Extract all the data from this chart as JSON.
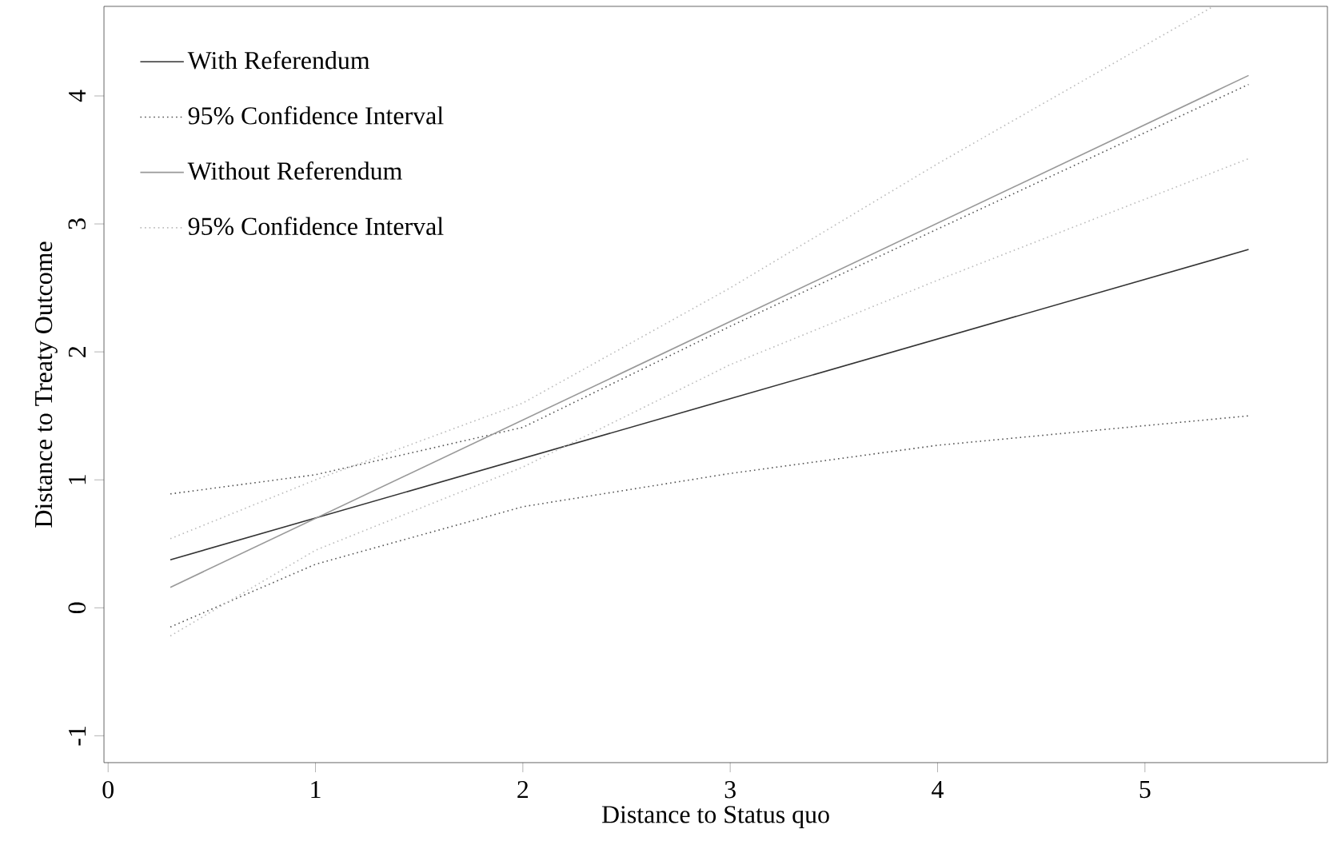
{
  "chart_data": {
    "type": "line",
    "xlabel": "Distance to Status quo",
    "ylabel": "Distance to Treaty Outcome",
    "xlim": [
      -0.02,
      5.88
    ],
    "ylim": [
      -1.21,
      4.7
    ],
    "xticks": [
      0,
      1,
      2,
      3,
      4,
      5
    ],
    "yticks": [
      -1,
      0,
      1,
      2,
      3,
      4
    ],
    "grid": false,
    "legend": "top left",
    "marker": "none",
    "series": [
      {
        "name": "With Referendum",
        "color": "#333333",
        "line_style": "solid",
        "x": [
          0.3,
          5.5
        ],
        "values": [
          0.375,
          2.8
        ]
      },
      {
        "name": "95% Confidence Interval",
        "color": "#555555",
        "line_style": "dotted",
        "x": [
          0.3,
          1,
          2,
          3,
          4,
          5.5
        ],
        "values": [
          0.89,
          1.04,
          1.41,
          2.2,
          2.96,
          4.09
        ]
      },
      {
        "name": "Without Referendum",
        "color": "#999999",
        "line_style": "solid",
        "x": [
          0.3,
          5.5
        ],
        "values": [
          0.16,
          4.16
        ]
      },
      {
        "name": "95% Confidence Interval",
        "color": "#bbbbbb",
        "line_style": "dotted",
        "x": [
          0.3,
          1,
          2,
          3,
          4,
          5.33
        ],
        "values": [
          0.54,
          1.0,
          1.6,
          2.5,
          3.47,
          4.7
        ]
      },
      {
        "color": "#555555",
        "line_style": "dotted",
        "x": [
          0.3,
          1,
          2,
          3,
          4,
          5.5
        ],
        "values": [
          -0.15,
          0.34,
          0.79,
          1.05,
          1.27,
          1.5
        ]
      },
      {
        "color": "#bbbbbb",
        "line_style": "dotted",
        "x": [
          0.3,
          1,
          2,
          3,
          4,
          5.5
        ],
        "values": [
          -0.22,
          0.45,
          1.1,
          1.9,
          2.56,
          3.51
        ]
      }
    ]
  }
}
